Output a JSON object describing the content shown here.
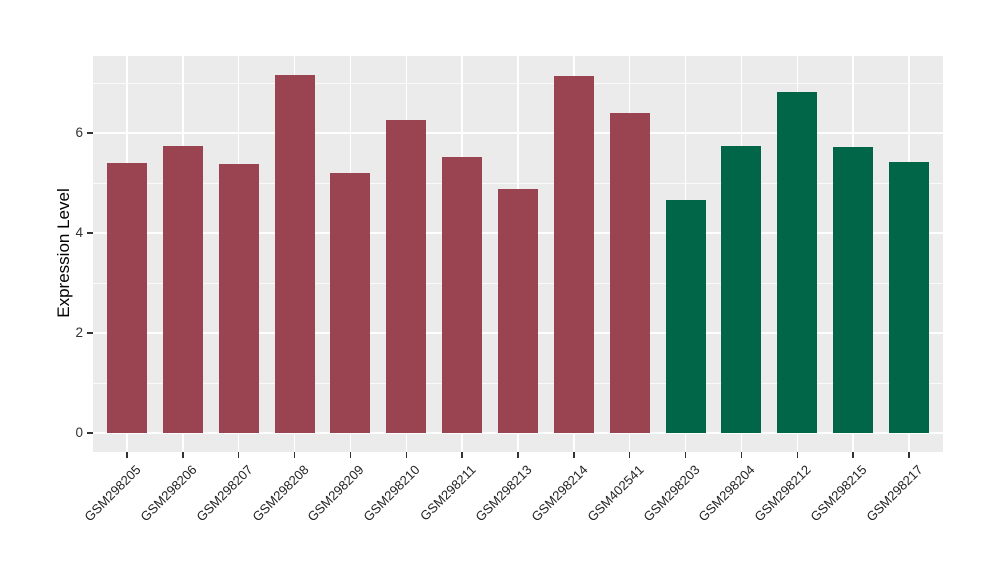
{
  "chart_data": {
    "type": "bar",
    "title": "",
    "xlabel": "",
    "ylabel": "Expression Level",
    "categories": [
      "GSM298205",
      "GSM298206",
      "GSM298207",
      "GSM298208",
      "GSM298209",
      "GSM298210",
      "GSM298211",
      "GSM298213",
      "GSM298214",
      "GSM402541",
      "GSM298203",
      "GSM298204",
      "GSM298212",
      "GSM298215",
      "GSM298217"
    ],
    "values": [
      5.4,
      5.74,
      5.38,
      7.16,
      5.2,
      6.26,
      5.52,
      4.88,
      7.14,
      6.4,
      4.66,
      5.74,
      6.83,
      5.73,
      5.42
    ],
    "bar_groups": [
      "group1",
      "group1",
      "group1",
      "group1",
      "group1",
      "group1",
      "group1",
      "group1",
      "group1",
      "group1",
      "group2",
      "group2",
      "group2",
      "group2",
      "group2"
    ],
    "group_colors": {
      "group1": "#9A4351",
      "group2": "#006647"
    },
    "yticks": [
      0,
      2,
      4,
      6
    ],
    "minor_yticks": [
      1,
      3,
      5,
      7
    ],
    "ylim": [
      0,
      7.54
    ],
    "grid": true,
    "legend": false,
    "panel_background": "#EBEBEB",
    "gridline_color": "#FFFFFF",
    "tick_color": "#333333",
    "x_label_angle": -45
  }
}
